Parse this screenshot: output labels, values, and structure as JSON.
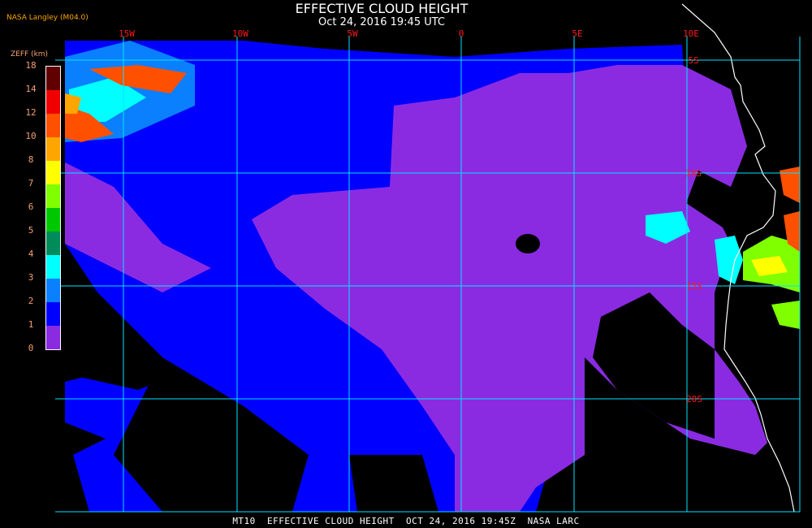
{
  "header": {
    "title": "EFFECTIVE CLOUD HEIGHT",
    "subtitle": "Oct 24, 2016 19:45 UTC",
    "source": "NASA Langley (M04.0)"
  },
  "legend": {
    "title": "ZEFF (km)",
    "ticks": [
      "0",
      "1",
      "2",
      "3",
      "4",
      "5",
      "6",
      "7",
      "8",
      "10",
      "12",
      "14",
      "18"
    ],
    "colors": [
      "#8a2be2",
      "#0000ff",
      "#0a80ff",
      "#00ffff",
      "#008c5a",
      "#00c800",
      "#80ff00",
      "#ffff00",
      "#ffa500",
      "#ff5000",
      "#f00000",
      "#600000"
    ]
  },
  "map": {
    "longitude_labels": [
      "15W",
      "10W",
      "5W",
      "0",
      "5E",
      "10E"
    ],
    "latitude_labels": [
      "5S",
      "10S",
      "15S",
      "20S"
    ],
    "gridline_color": "#00e5ff",
    "coastline_color": "#ffffff"
  },
  "footer": {
    "caption": "MT10  EFFECTIVE CLOUD HEIGHT  OCT 24, 2016 19:45Z  NASA LARC"
  }
}
